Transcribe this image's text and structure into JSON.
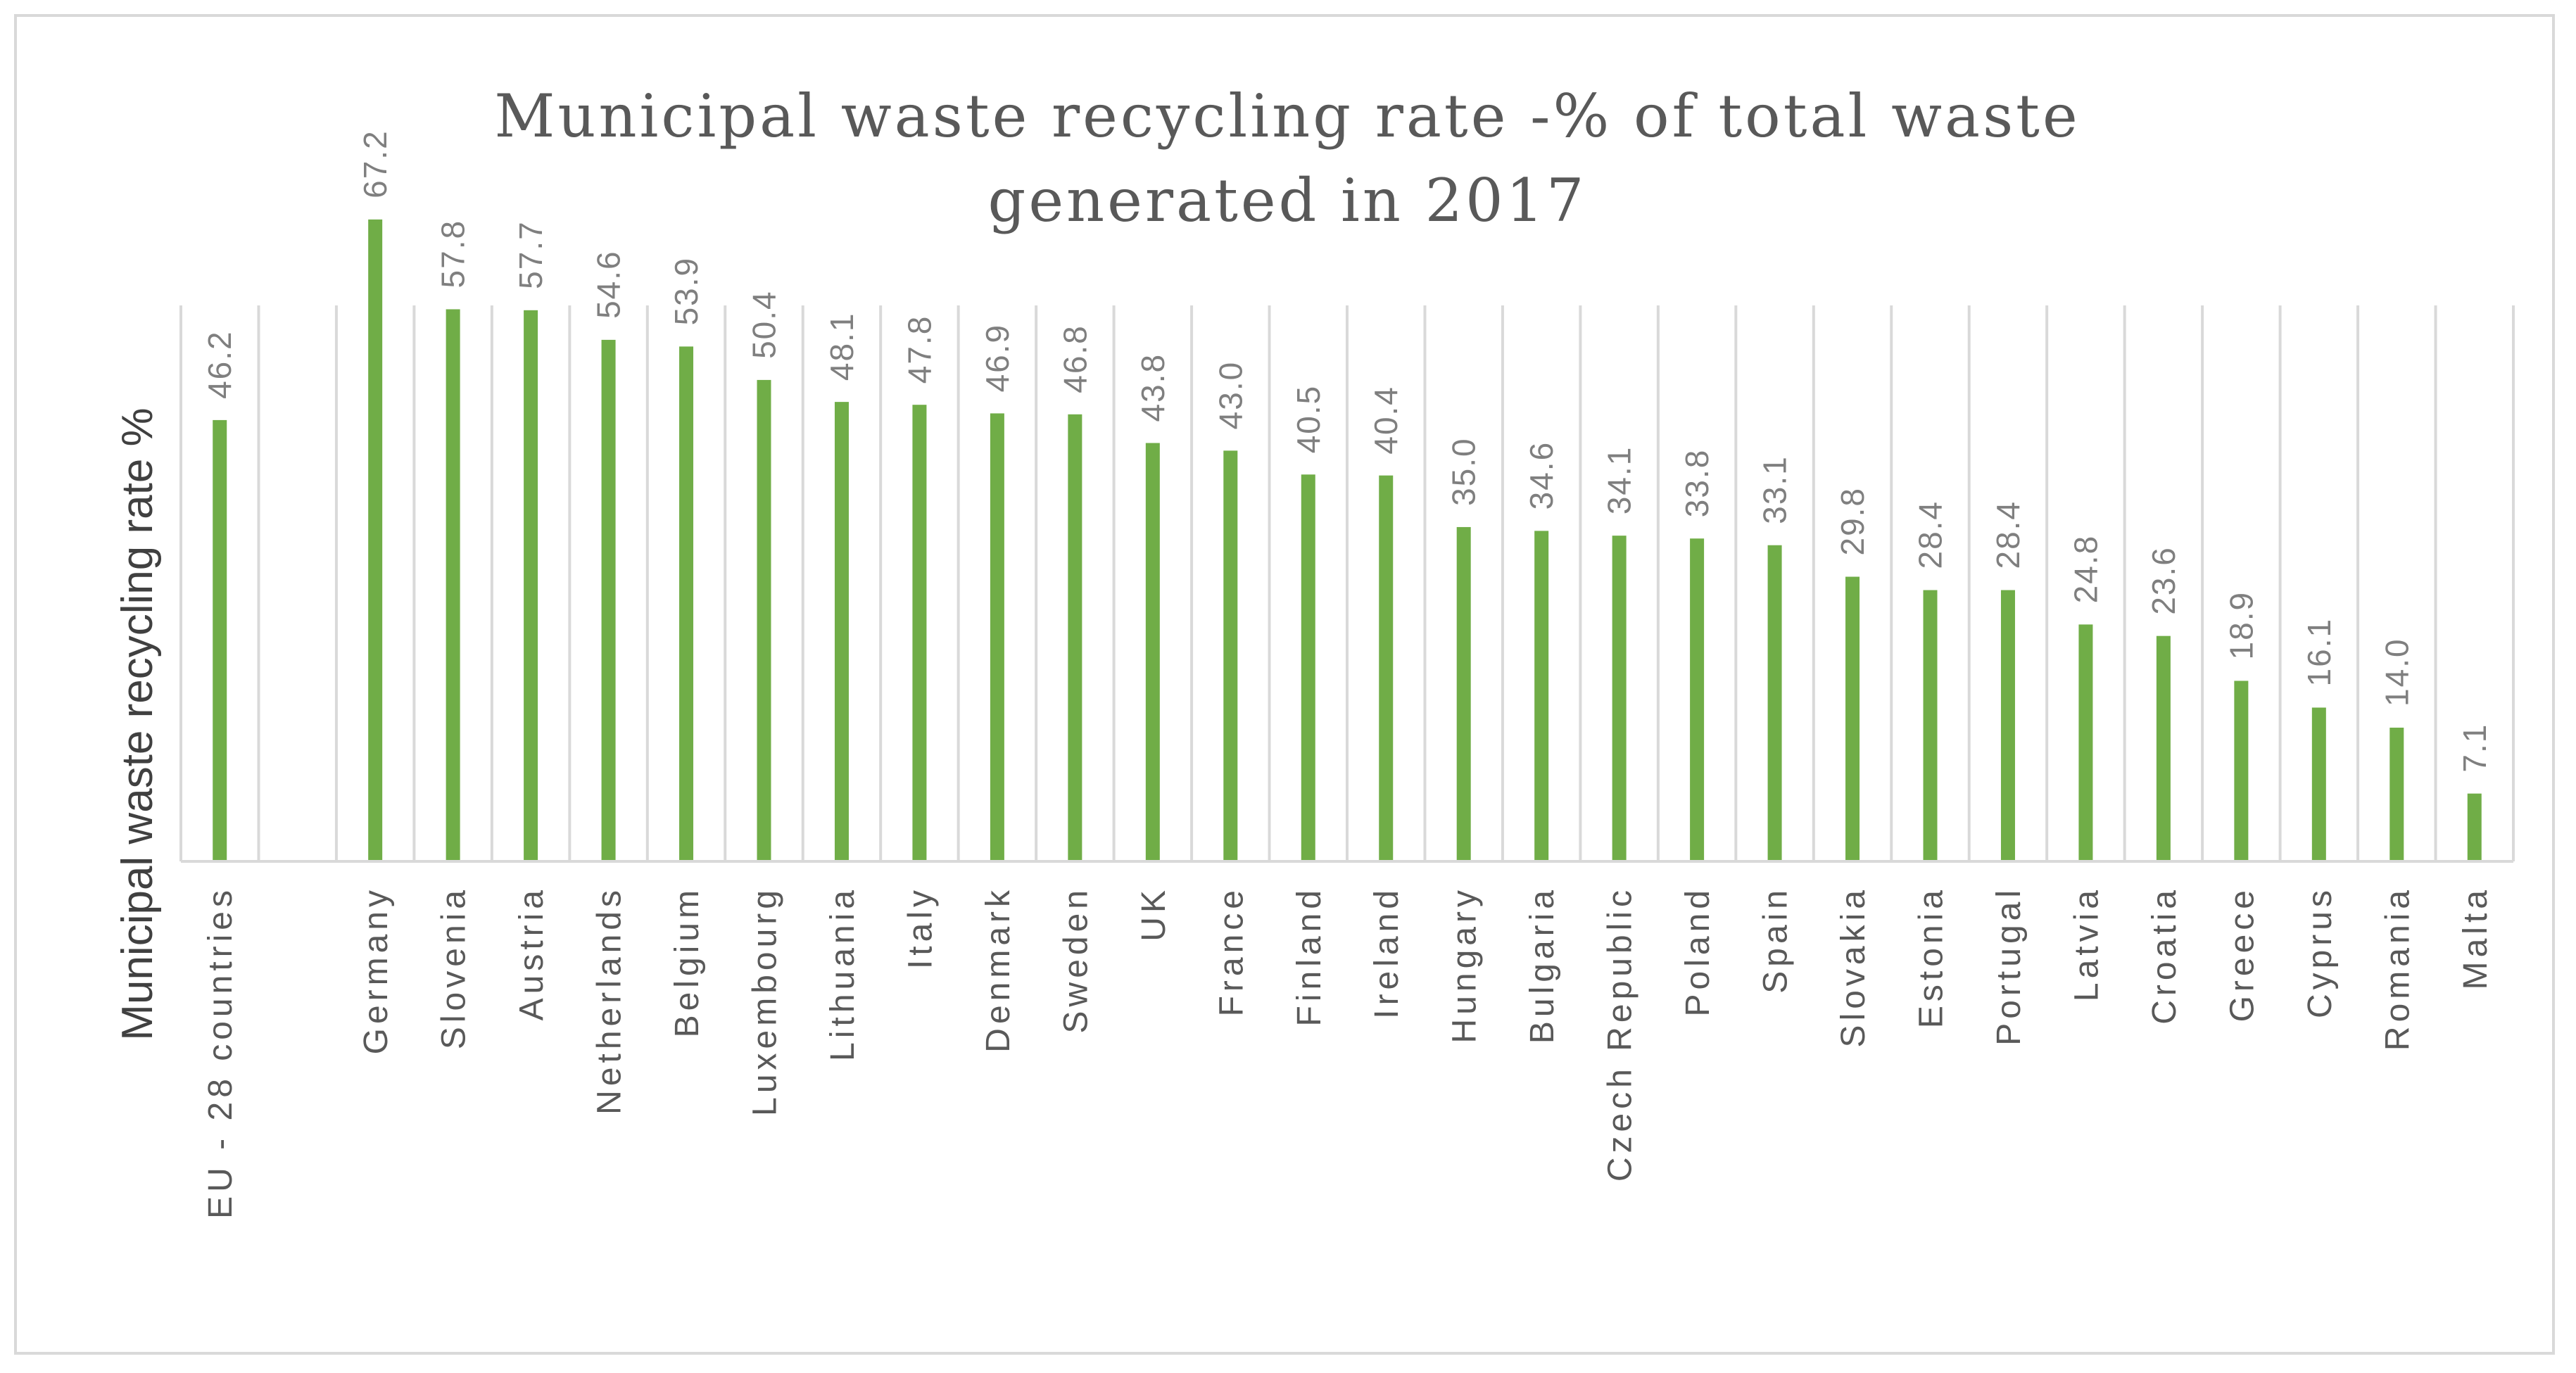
{
  "chart_data": {
    "type": "bar",
    "title_lines": [
      "Municipal waste recycling rate -% of total waste",
      "generated in 2017"
    ],
    "ylabel": "Municipal waste recycling rate %",
    "xlabel": "",
    "ylim": [
      0,
      75
    ],
    "grid": "vertical",
    "bar_color": "#70ad47",
    "categories": [
      "EU - 28 countries",
      "",
      "Germany",
      "Slovenia",
      "Austria",
      "Netherlands",
      "Belgium",
      "Luxembourg",
      "Lithuania",
      "Italy",
      "Denmark",
      "Sweden",
      "UK",
      "France",
      "Finland",
      "Ireland",
      "Hungary",
      "Bulgaria",
      "Czech Republic",
      "Poland",
      "Spain",
      "Slovakia",
      "Estonia",
      "Portugal",
      "Latvia",
      "Croatia",
      "Greece",
      "Cyprus",
      "Romania",
      "Malta"
    ],
    "values": [
      46.2,
      null,
      67.2,
      57.8,
      57.7,
      54.6,
      53.9,
      50.4,
      48.1,
      47.8,
      46.9,
      46.8,
      43.8,
      43.0,
      40.5,
      40.4,
      35.0,
      34.6,
      34.1,
      33.8,
      33.1,
      29.8,
      28.4,
      28.4,
      24.8,
      23.6,
      18.9,
      16.1,
      14.0,
      7.1
    ],
    "value_labels": [
      "46.2",
      "",
      "67.2",
      "57.8",
      "57.7",
      "54.6",
      "53.9",
      "50.4",
      "48.1",
      "47.8",
      "46.9",
      "46.8",
      "43.8",
      "43.0",
      "40.5",
      "40.4",
      "35.0",
      "34.6",
      "34.1",
      "33.8",
      "33.1",
      "29.8",
      "28.4",
      "28.4",
      "24.8",
      "23.6",
      "18.9",
      "16.1",
      "14.0",
      "7.1"
    ]
  }
}
